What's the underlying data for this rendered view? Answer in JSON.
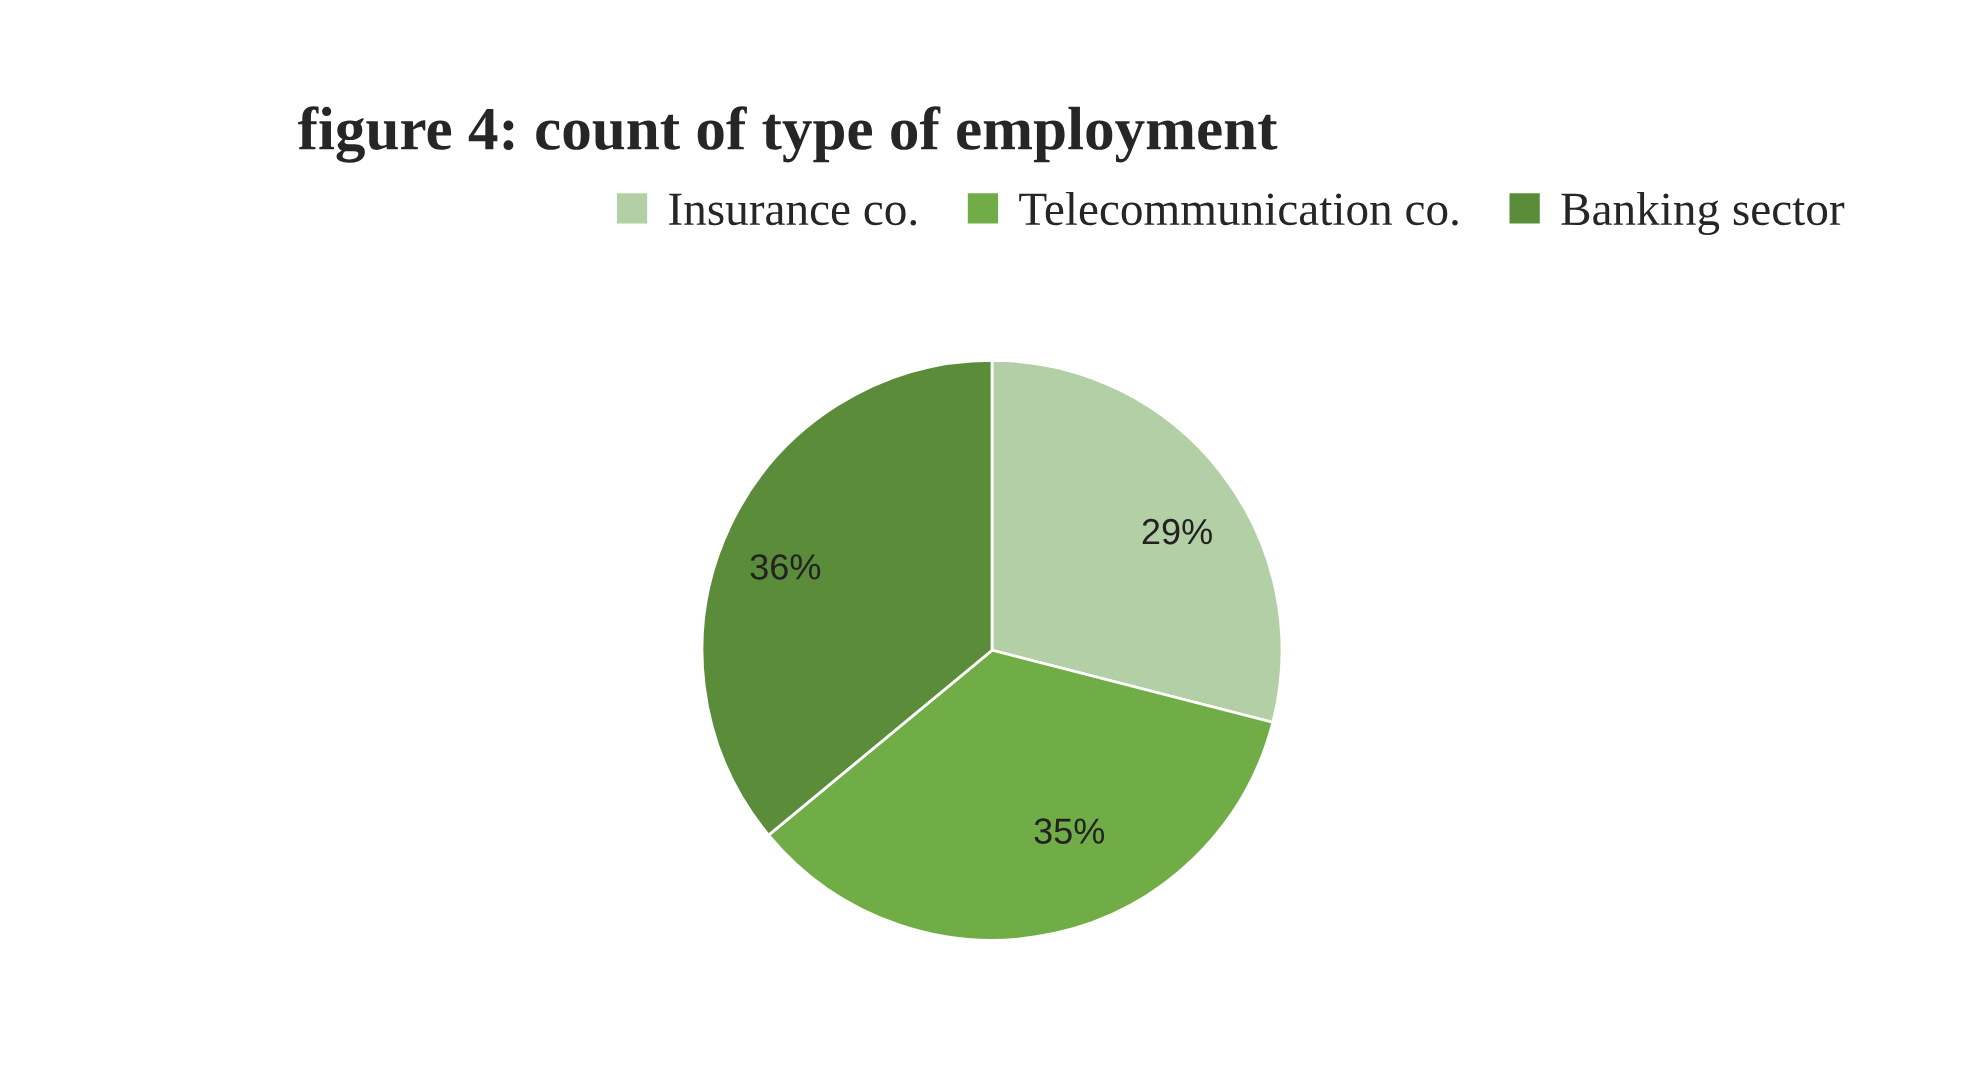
{
  "chart_data": {
    "type": "pie",
    "title": "figure 4: count of type of employment",
    "categories": [
      "Insurance co.",
      "Telecommunication co.",
      "Banking sector"
    ],
    "values": [
      29,
      35,
      36
    ],
    "value_labels": [
      "29%",
      "35%",
      "36%"
    ],
    "colors": [
      "#b3cfa5",
      "#70ad47",
      "#5b8c39"
    ],
    "legend": "top"
  }
}
